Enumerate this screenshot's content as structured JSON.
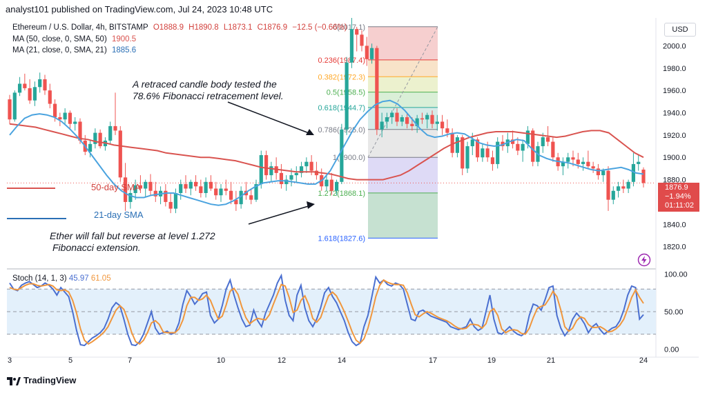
{
  "header": {
    "caption": "analyst101 published on TradingView.com, Jul 24, 2023 10:48 UTC",
    "symbol": "Ethereum / U.S. Dollar, 4h, BITSTAMP",
    "ohlc": {
      "o": "O1888.9",
      "h": "H1890.8",
      "l": "L1873.1",
      "c": "C1876.9",
      "chg": "−12.5 (−0.66%)"
    },
    "ma50_label": "MA (50, close, 0, SMA, 50)",
    "ma50_value": "1900.5",
    "ma21_label": "MA (21, close, 0, SMA, 21)",
    "ma21_value": "1885.6",
    "currency": "USD"
  },
  "annotations": {
    "fib_test_1": "A retraced candle body tested the",
    "fib_test_2": "78.6% Fibonacci retracement level.",
    "fall_1": "Ether will fall but reverse at level 1.272",
    "fall_2": "Fibonacci extension.",
    "ma50_tag": "50-day SMA",
    "ma21_tag": "21-day SMA"
  },
  "price_box": {
    "price": "1876.9",
    "change": "−1.94%",
    "timer": "01:11:02"
  },
  "stoch": {
    "label": "Stoch (14, 1, 3)",
    "k_value": "45.97",
    "d_value": "61.05"
  },
  "footer": {
    "brand": "TradingView"
  },
  "colors": {
    "up": "#26a69a",
    "down": "#ef5350",
    "ma50": "#d9534f",
    "ma21": "#4aa3df",
    "stoch_k": "#4a6fd0",
    "stoch_d": "#f0963c"
  },
  "chart_data": {
    "type": "candlestick",
    "timeframe": "4h",
    "x_tick_labels": [
      "3",
      "5",
      "7",
      "10",
      "12",
      "14",
      "17",
      "19",
      "21",
      "24"
    ],
    "price_axis": {
      "ylim": [
        1800,
        2025
      ],
      "ticks": [
        1820.0,
        1840.0,
        1860.0,
        1880.0,
        1900.0,
        1920.0,
        1940.0,
        1960.0,
        1980.0,
        2000.0
      ]
    },
    "candles": [
      [
        1952,
        1956,
        1930,
        1934
      ],
      [
        1934,
        1960,
        1932,
        1958
      ],
      [
        1958,
        1972,
        1955,
        1966
      ],
      [
        1966,
        1975,
        1960,
        1962
      ],
      [
        1962,
        1970,
        1948,
        1951
      ],
      [
        1951,
        1968,
        1946,
        1963
      ],
      [
        1963,
        1976,
        1958,
        1970
      ],
      [
        1970,
        1974,
        1956,
        1960
      ],
      [
        1960,
        1966,
        1944,
        1948
      ],
      [
        1948,
        1952,
        1932,
        1936
      ],
      [
        1936,
        1940,
        1928,
        1934
      ],
      [
        1934,
        1944,
        1930,
        1940
      ],
      [
        1940,
        1942,
        1926,
        1930
      ],
      [
        1930,
        1936,
        1924,
        1932
      ],
      [
        1932,
        1935,
        1912,
        1915
      ],
      [
        1915,
        1920,
        1902,
        1905
      ],
      [
        1905,
        1916,
        1900,
        1912
      ],
      [
        1912,
        1926,
        1908,
        1922
      ],
      [
        1922,
        1925,
        1908,
        1910
      ],
      [
        1910,
        1918,
        1906,
        1915
      ],
      [
        1915,
        1932,
        1912,
        1928
      ],
      [
        1928,
        1958,
        1920,
        1924
      ],
      [
        1924,
        1928,
        1878,
        1882
      ],
      [
        1882,
        1895,
        1852,
        1860
      ],
      [
        1860,
        1872,
        1854,
        1868
      ],
      [
        1868,
        1880,
        1862,
        1875
      ],
      [
        1875,
        1884,
        1868,
        1872
      ],
      [
        1872,
        1880,
        1864,
        1878
      ],
      [
        1878,
        1885,
        1866,
        1870
      ],
      [
        1870,
        1878,
        1860,
        1865
      ],
      [
        1865,
        1874,
        1858,
        1870
      ],
      [
        1870,
        1876,
        1856,
        1860
      ],
      [
        1860,
        1868,
        1850,
        1854
      ],
      [
        1854,
        1872,
        1850,
        1868
      ],
      [
        1868,
        1880,
        1862,
        1876
      ],
      [
        1876,
        1884,
        1868,
        1872
      ],
      [
        1872,
        1880,
        1866,
        1878
      ],
      [
        1878,
        1884,
        1870,
        1874
      ],
      [
        1874,
        1880,
        1864,
        1868
      ],
      [
        1868,
        1882,
        1864,
        1878
      ],
      [
        1878,
        1884,
        1870,
        1872
      ],
      [
        1872,
        1878,
        1862,
        1866
      ],
      [
        1866,
        1876,
        1860,
        1872
      ],
      [
        1872,
        1880,
        1866,
        1870
      ],
      [
        1870,
        1878,
        1858,
        1862
      ],
      [
        1862,
        1870,
        1852,
        1858
      ],
      [
        1858,
        1874,
        1854,
        1870
      ],
      [
        1870,
        1878,
        1862,
        1866
      ],
      [
        1866,
        1872,
        1858,
        1862
      ],
      [
        1862,
        1880,
        1860,
        1876
      ],
      [
        1876,
        1906,
        1872,
        1902
      ],
      [
        1902,
        1906,
        1880,
        1884
      ],
      [
        1884,
        1896,
        1878,
        1892
      ],
      [
        1892,
        1900,
        1880,
        1886
      ],
      [
        1886,
        1894,
        1872,
        1876
      ],
      [
        1876,
        1884,
        1870,
        1880
      ],
      [
        1880,
        1890,
        1874,
        1884
      ],
      [
        1884,
        1892,
        1878,
        1886
      ],
      [
        1886,
        1896,
        1882,
        1892
      ],
      [
        1892,
        1900,
        1886,
        1896
      ],
      [
        1896,
        1902,
        1884,
        1888
      ],
      [
        1888,
        1896,
        1880,
        1884
      ],
      [
        1884,
        1890,
        1870,
        1874
      ],
      [
        1874,
        1884,
        1870,
        1880
      ],
      [
        1880,
        1886,
        1866,
        1870
      ],
      [
        1870,
        1880,
        1866,
        1878
      ],
      [
        1878,
        1930,
        1876,
        1925
      ],
      [
        1925,
        1990,
        1920,
        1985
      ],
      [
        1985,
        2025,
        1980,
        2015
      ],
      [
        2015,
        2017,
        1995,
        2010
      ],
      [
        2010,
        2014,
        1995,
        2000
      ],
      [
        2000,
        2008,
        1982,
        1988
      ],
      [
        1988,
        2002,
        1984,
        1998
      ],
      [
        1998,
        2000,
        1920,
        1925
      ],
      [
        1925,
        1940,
        1918,
        1932
      ],
      [
        1932,
        1940,
        1926,
        1936
      ],
      [
        1936,
        1942,
        1930,
        1940
      ],
      [
        1940,
        1944,
        1928,
        1932
      ],
      [
        1932,
        1938,
        1928,
        1936
      ],
      [
        1936,
        1940,
        1926,
        1930
      ],
      [
        1930,
        1936,
        1924,
        1928
      ],
      [
        1928,
        1938,
        1922,
        1935
      ],
      [
        1935,
        1940,
        1930,
        1934
      ],
      [
        1934,
        1940,
        1926,
        1938
      ],
      [
        1938,
        1942,
        1926,
        1930
      ],
      [
        1930,
        1938,
        1924,
        1932
      ],
      [
        1932,
        1938,
        1920,
        1926
      ],
      [
        1926,
        1934,
        1918,
        1922
      ],
      [
        1922,
        1926,
        1900,
        1904
      ],
      [
        1904,
        1920,
        1900,
        1918
      ],
      [
        1918,
        1920,
        1884,
        1890
      ],
      [
        1890,
        1914,
        1886,
        1910
      ],
      [
        1910,
        1922,
        1902,
        1916
      ],
      [
        1916,
        1918,
        1896,
        1900
      ],
      [
        1900,
        1912,
        1896,
        1908
      ],
      [
        1908,
        1914,
        1896,
        1900
      ],
      [
        1900,
        1906,
        1888,
        1894
      ],
      [
        1894,
        1918,
        1890,
        1914
      ],
      [
        1914,
        1920,
        1906,
        1910
      ],
      [
        1910,
        1922,
        1904,
        1916
      ],
      [
        1916,
        1924,
        1908,
        1912
      ],
      [
        1912,
        1918,
        1902,
        1906
      ],
      [
        1906,
        1916,
        1896,
        1912
      ],
      [
        1912,
        1928,
        1908,
        1924
      ],
      [
        1924,
        1926,
        1892,
        1896
      ],
      [
        1896,
        1914,
        1892,
        1910
      ],
      [
        1910,
        1922,
        1904,
        1918
      ],
      [
        1918,
        1928,
        1910,
        1914
      ],
      [
        1914,
        1918,
        1896,
        1900
      ],
      [
        1900,
        1904,
        1888,
        1892
      ],
      [
        1892,
        1900,
        1884,
        1896
      ],
      [
        1896,
        1904,
        1890,
        1900
      ],
      [
        1900,
        1906,
        1892,
        1898
      ],
      [
        1898,
        1904,
        1890,
        1894
      ],
      [
        1894,
        1900,
        1888,
        1896
      ],
      [
        1896,
        1906,
        1890,
        1892
      ],
      [
        1892,
        1896,
        1886,
        1890
      ],
      [
        1890,
        1894,
        1880,
        1884
      ],
      [
        1884,
        1890,
        1878,
        1888
      ],
      [
        1888,
        1892,
        1852,
        1862
      ],
      [
        1862,
        1874,
        1858,
        1870
      ],
      [
        1870,
        1878,
        1864,
        1874
      ],
      [
        1874,
        1880,
        1868,
        1872
      ],
      [
        1872,
        1880,
        1868,
        1878
      ],
      [
        1878,
        1904,
        1874,
        1894
      ],
      [
        1894,
        1902,
        1888,
        1896
      ],
      [
        1889,
        1891,
        1873,
        1877
      ]
    ],
    "ma50": [
      1930,
      1929,
      1928,
      1927,
      1925,
      1923,
      1921,
      1919,
      1917,
      1916,
      1914,
      1913,
      1911,
      1910,
      1909,
      1908,
      1907,
      1906,
      1904,
      1903,
      1902,
      1901,
      1900,
      1900,
      1899,
      1898,
      1897,
      1895,
      1893,
      1891,
      1890,
      1889,
      1888,
      1887,
      1887,
      1887,
      1886,
      1885,
      1883,
      1881,
      1880,
      1880,
      1880,
      1880,
      1882,
      1884,
      1888,
      1893,
      1898,
      1903,
      1908,
      1912,
      1915,
      1918,
      1920,
      1922,
      1923,
      1923,
      1923,
      1922,
      1921,
      1920,
      1919,
      1918,
      1919,
      1921,
      1923,
      1924,
      1924,
      1922,
      1916,
      1910,
      1904,
      1900
    ],
    "ma21": [
      1920,
      1928,
      1935,
      1938,
      1939,
      1938,
      1936,
      1932,
      1926,
      1919,
      1911,
      1902,
      1893,
      1884,
      1876,
      1870,
      1866,
      1864,
      1864,
      1866,
      1867,
      1868,
      1868,
      1866,
      1864,
      1862,
      1860,
      1858,
      1857,
      1858,
      1861,
      1865,
      1870,
      1874,
      1877,
      1878,
      1879,
      1879,
      1878,
      1877,
      1876,
      1876,
      1880,
      1888,
      1900,
      1912,
      1924,
      1934,
      1941,
      1947,
      1950,
      1951,
      1948,
      1942,
      1934,
      1926,
      1920,
      1918,
      1919,
      1921,
      1922,
      1921,
      1917,
      1913,
      1911,
      1910,
      1911,
      1914,
      1916,
      1915,
      1908,
      1902,
      1899,
      1897,
      1896,
      1895,
      1893,
      1891,
      1889,
      1888,
      1889,
      1890,
      1891,
      1889,
      1886,
      1885
    ],
    "fibonacci": {
      "x_range_days": [
        "14",
        "17"
      ],
      "levels": [
        {
          "label": "0(2017.1)",
          "ratio": 0,
          "price": 2017.1
        },
        {
          "label": "0.236(1987.4)",
          "ratio": 0.236,
          "price": 1987.4
        },
        {
          "label": "0.382(1972.3)",
          "ratio": 0.382,
          "price": 1972.3
        },
        {
          "label": "0.5(1958.5)",
          "ratio": 0.5,
          "price": 1958.5
        },
        {
          "label": "0.618(1944.7)",
          "ratio": 0.618,
          "price": 1944.7
        },
        {
          "label": "0.786(1925.0)",
          "ratio": 0.786,
          "price": 1925.0
        },
        {
          "label": "1(1900.0)",
          "ratio": 1,
          "price": 1900.0
        },
        {
          "label": "1.272(1868.1)",
          "ratio": 1.272,
          "price": 1868.1
        },
        {
          "label": "1.618(1827.6)",
          "ratio": 1.618,
          "price": 1827.6
        }
      ]
    },
    "stoch_axis": {
      "ylim": [
        -5,
        105
      ],
      "ticks": [
        "0.00",
        "50.00",
        "100.00"
      ],
      "bands": [
        20,
        80
      ]
    },
    "stoch_k": [
      88,
      80,
      78,
      85,
      88,
      90,
      86,
      82,
      84,
      88,
      85,
      80,
      72,
      82,
      76,
      70,
      50,
      25,
      6,
      5,
      10,
      15,
      18,
      22,
      28,
      40,
      55,
      62,
      58,
      40,
      20,
      6,
      5,
      10,
      20,
      35,
      50,
      28,
      20,
      22,
      24,
      20,
      22,
      35,
      60,
      78,
      70,
      60,
      66,
      74,
      76,
      45,
      35,
      40,
      58,
      80,
      92,
      72,
      55,
      40,
      30,
      32,
      52,
      38,
      30,
      48,
      60,
      72,
      88,
      98,
      65,
      45,
      38,
      72,
      85,
      55,
      38,
      30,
      40,
      55,
      75,
      82,
      70,
      62,
      50,
      38,
      22,
      10,
      5,
      8,
      30,
      45,
      70,
      96,
      88,
      92,
      86,
      84,
      88,
      86,
      80,
      60,
      40,
      38,
      50,
      52,
      48,
      44,
      42,
      40,
      38,
      36,
      30,
      28,
      26,
      28,
      30,
      40,
      30,
      25,
      28,
      50,
      72,
      40,
      22,
      20,
      25,
      30,
      24,
      20,
      18,
      22,
      45,
      60,
      58,
      52,
      66,
      82,
      84,
      45,
      28,
      18,
      25,
      40,
      48,
      42,
      34,
      22,
      30,
      34,
      26,
      20,
      24,
      28,
      30,
      38,
      52,
      72,
      84,
      82,
      40,
      46
    ],
    "stoch_d": [
      82,
      80,
      79,
      82,
      85,
      87,
      87,
      85,
      84,
      85,
      86,
      84,
      79,
      78,
      79,
      76,
      65,
      48,
      27,
      12,
      7,
      10,
      14,
      18,
      23,
      30,
      41,
      52,
      58,
      53,
      39,
      22,
      10,
      7,
      12,
      22,
      35,
      38,
      33,
      23,
      22,
      22,
      22,
      27,
      39,
      58,
      69,
      69,
      65,
      67,
      72,
      65,
      52,
      40,
      44,
      59,
      77,
      81,
      73,
      56,
      42,
      34,
      38,
      41,
      40,
      39,
      46,
      60,
      73,
      86,
      84,
      69,
      49,
      52,
      65,
      71,
      59,
      41,
      36,
      42,
      57,
      71,
      76,
      71,
      61,
      50,
      37,
      23,
      12,
      8,
      14,
      28,
      48,
      70,
      85,
      92,
      89,
      87,
      86,
      86,
      85,
      75,
      60,
      46,
      43,
      47,
      50,
      48,
      45,
      42,
      40,
      38,
      35,
      31,
      28,
      27,
      28,
      33,
      33,
      32,
      28,
      34,
      50,
      54,
      45,
      27,
      22,
      25,
      26,
      25,
      21,
      20,
      28,
      42,
      54,
      57,
      59,
      67,
      77,
      70,
      52,
      30,
      24,
      28,
      38,
      43,
      41,
      33,
      29,
      29,
      30,
      27,
      23,
      24,
      27,
      32,
      40,
      54,
      69,
      79,
      69,
      61
    ]
  }
}
